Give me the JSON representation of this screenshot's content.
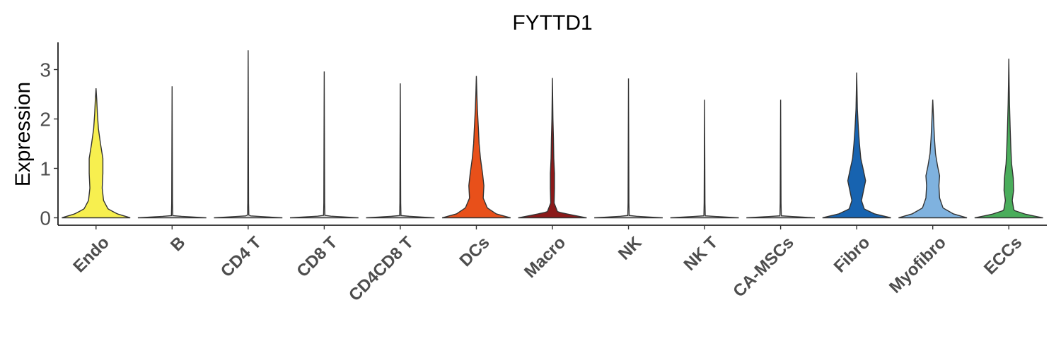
{
  "chart_data": {
    "type": "violin",
    "title": "FYTTD1",
    "ylabel": "Expression",
    "xlabel": "",
    "ylim": [
      -0.15,
      3.55
    ],
    "yticks": [
      0,
      1,
      2,
      3
    ],
    "grid": false,
    "legend": "none",
    "categories": [
      "Endo",
      "B",
      "CD4 T",
      "CD8 T",
      "CD4CD8 T",
      "DCs",
      "Macro",
      "NK",
      "NK T",
      "CA-MSCs",
      "Fibro",
      "Myofibro",
      "ECCs"
    ],
    "colors": [
      "#f7ef4f",
      "#d9d9d9",
      "#d9d9d9",
      "#d9d9d9",
      "#d9d9d9",
      "#e8501a",
      "#8b1a1a",
      "#d9d9d9",
      "#d9d9d9",
      "#d9d9d9",
      "#1763b0",
      "#7fb2df",
      "#4aad5b"
    ],
    "max_values": [
      2.62,
      2.66,
      3.39,
      2.96,
      2.72,
      2.87,
      2.83,
      2.82,
      2.39,
      2.39,
      2.94,
      2.39,
      3.22
    ],
    "density_profiles": [
      [
        [
          0,
          1.0
        ],
        [
          0.08,
          0.62
        ],
        [
          0.18,
          0.35
        ],
        [
          0.35,
          0.22
        ],
        [
          0.6,
          0.18
        ],
        [
          0.9,
          0.2
        ],
        [
          1.2,
          0.2
        ],
        [
          1.5,
          0.13
        ],
        [
          1.8,
          0.07
        ],
        [
          2.1,
          0.04
        ],
        [
          2.4,
          0.02
        ],
        [
          2.62,
          0
        ]
      ],
      [
        [
          0,
          1.0
        ],
        [
          0.04,
          0.02
        ],
        [
          0.3,
          0.012
        ],
        [
          2.66,
          0
        ]
      ],
      [
        [
          0,
          1.0
        ],
        [
          0.04,
          0.02
        ],
        [
          0.3,
          0.012
        ],
        [
          3.39,
          0
        ]
      ],
      [
        [
          0,
          1.0
        ],
        [
          0.04,
          0.02
        ],
        [
          0.3,
          0.012
        ],
        [
          2.96,
          0
        ]
      ],
      [
        [
          0,
          1.0
        ],
        [
          0.04,
          0.02
        ],
        [
          0.3,
          0.012
        ],
        [
          2.72,
          0
        ]
      ],
      [
        [
          0,
          1.0
        ],
        [
          0.08,
          0.58
        ],
        [
          0.2,
          0.32
        ],
        [
          0.4,
          0.2
        ],
        [
          0.65,
          0.22
        ],
        [
          0.9,
          0.18
        ],
        [
          1.2,
          0.12
        ],
        [
          1.5,
          0.08
        ],
        [
          1.8,
          0.06
        ],
        [
          2.2,
          0.03
        ],
        [
          2.5,
          0.015
        ],
        [
          2.87,
          0
        ]
      ],
      [
        [
          0,
          1.0
        ],
        [
          0.06,
          0.55
        ],
        [
          0.12,
          0.15
        ],
        [
          0.3,
          0.05
        ],
        [
          0.6,
          0.06
        ],
        [
          0.9,
          0.06
        ],
        [
          1.2,
          0.04
        ],
        [
          1.6,
          0.03
        ],
        [
          2.0,
          0.015
        ],
        [
          2.83,
          0
        ]
      ],
      [
        [
          0,
          1.0
        ],
        [
          0.04,
          0.02
        ],
        [
          0.3,
          0.012
        ],
        [
          2.82,
          0
        ]
      ],
      [
        [
          0,
          1.0
        ],
        [
          0.04,
          0.02
        ],
        [
          0.3,
          0.012
        ],
        [
          2.39,
          0
        ]
      ],
      [
        [
          0,
          1.0
        ],
        [
          0.04,
          0.02
        ],
        [
          0.3,
          0.012
        ],
        [
          2.39,
          0
        ]
      ],
      [
        [
          0,
          1.0
        ],
        [
          0.08,
          0.52
        ],
        [
          0.18,
          0.22
        ],
        [
          0.35,
          0.14
        ],
        [
          0.55,
          0.2
        ],
        [
          0.75,
          0.26
        ],
        [
          0.95,
          0.2
        ],
        [
          1.2,
          0.12
        ],
        [
          1.5,
          0.08
        ],
        [
          1.8,
          0.05
        ],
        [
          2.2,
          0.02
        ],
        [
          2.94,
          0
        ]
      ],
      [
        [
          0,
          1.0
        ],
        [
          0.08,
          0.6
        ],
        [
          0.2,
          0.3
        ],
        [
          0.4,
          0.2
        ],
        [
          0.65,
          0.18
        ],
        [
          0.85,
          0.2
        ],
        [
          1.05,
          0.14
        ],
        [
          1.3,
          0.08
        ],
        [
          1.6,
          0.05
        ],
        [
          1.9,
          0.03
        ],
        [
          2.39,
          0
        ]
      ],
      [
        [
          0,
          1.0
        ],
        [
          0.07,
          0.5
        ],
        [
          0.15,
          0.15
        ],
        [
          0.35,
          0.1
        ],
        [
          0.55,
          0.14
        ],
        [
          0.8,
          0.13
        ],
        [
          1.1,
          0.08
        ],
        [
          1.4,
          0.06
        ],
        [
          1.8,
          0.04
        ],
        [
          2.3,
          0.02
        ],
        [
          2.7,
          0.01
        ],
        [
          3.22,
          0
        ]
      ]
    ]
  }
}
